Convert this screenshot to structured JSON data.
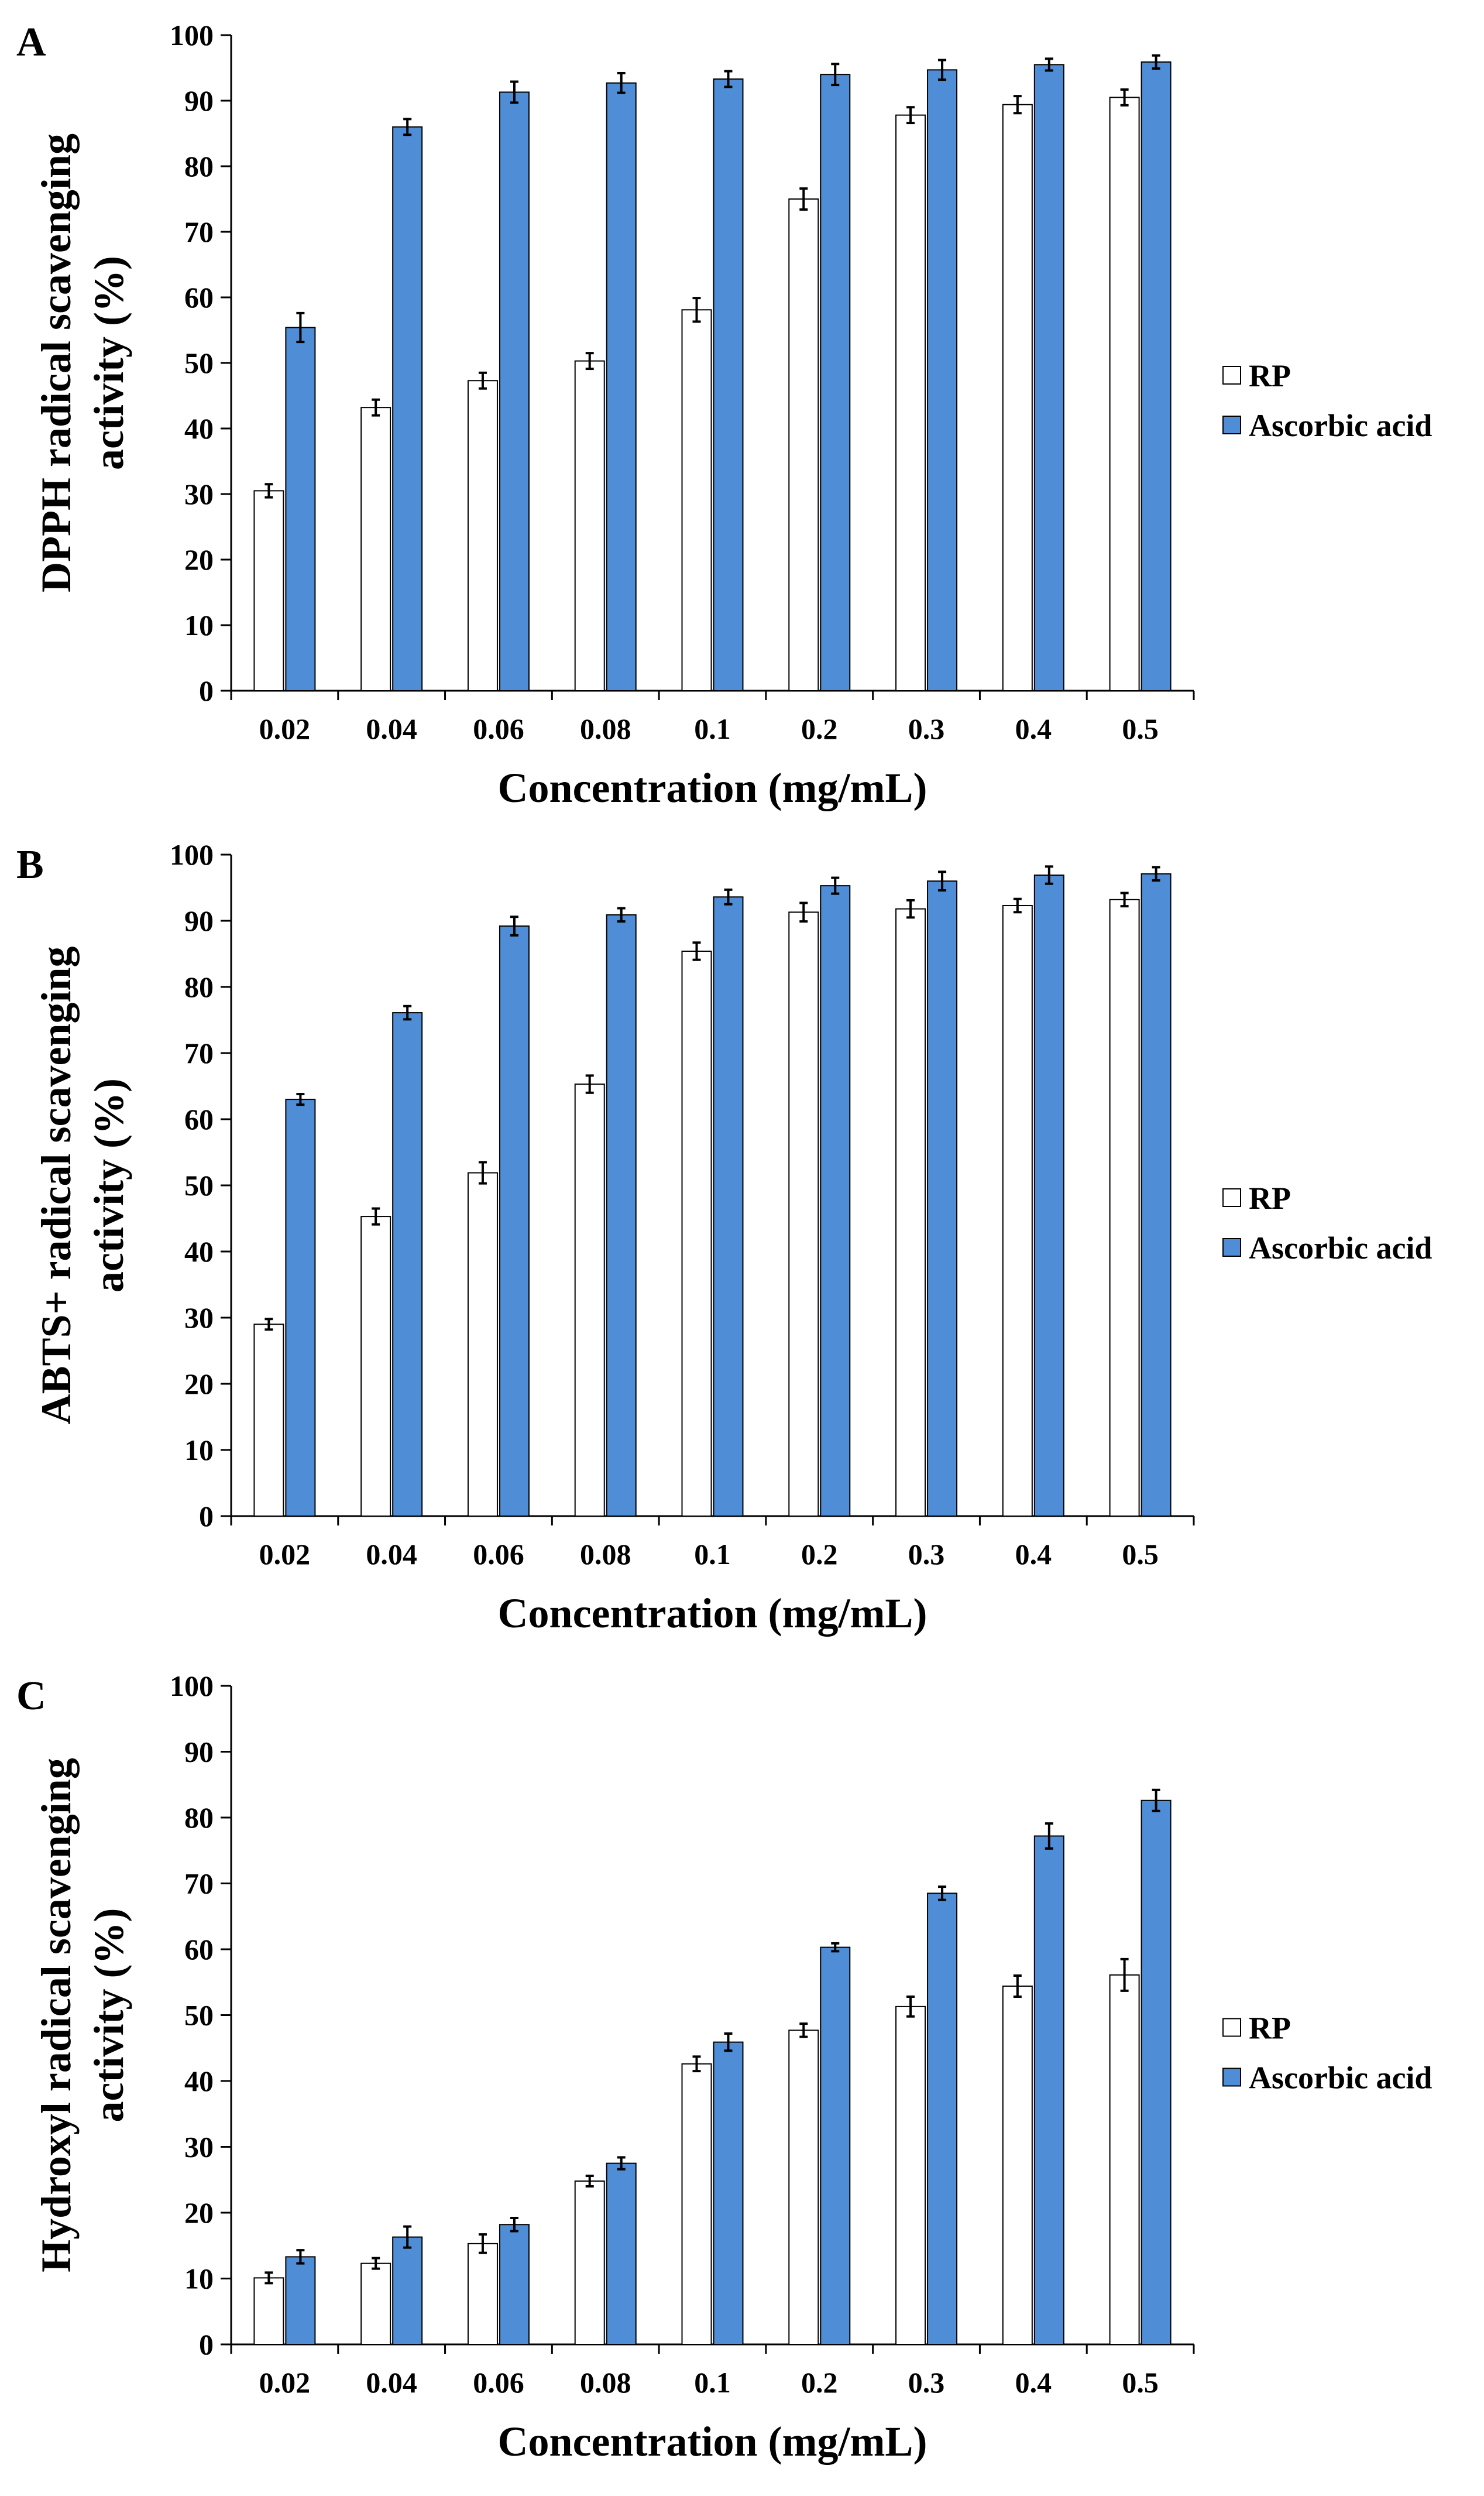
{
  "colors": {
    "rp": "#ffffff",
    "ascorbic": "#4f8ed6",
    "stroke": "#000000"
  },
  "chart_data": [
    {
      "panel": "A",
      "type": "bar",
      "xlabel": "Concentration (mg/mL)",
      "ylabel_line1": "DPPH radical scavenging",
      "ylabel_line2": "activity (%)",
      "ylim": [
        0,
        100
      ],
      "yticks": [
        "0",
        "10",
        "20",
        "30",
        "40",
        "50",
        "60",
        "70",
        "80",
        "90",
        "100"
      ],
      "categories": [
        "0.02",
        "0.04",
        "0.06",
        "0.08",
        "0.1",
        "0.2",
        "0.3",
        "0.4",
        "0.5"
      ],
      "series": [
        {
          "name": "RP",
          "values": [
            30.5,
            43.2,
            47.3,
            50.3,
            58.1,
            75.0,
            87.8,
            89.4,
            90.5
          ],
          "errors": [
            1.0,
            1.2,
            1.2,
            1.2,
            1.8,
            1.6,
            1.2,
            1.3,
            1.2
          ]
        },
        {
          "name": "Ascorbic acid",
          "values": [
            55.4,
            86.0,
            91.3,
            92.7,
            93.3,
            94.0,
            94.7,
            95.5,
            95.9
          ],
          "errors": [
            2.2,
            1.2,
            1.6,
            1.5,
            1.2,
            1.6,
            1.5,
            0.9,
            1.0
          ]
        }
      ]
    },
    {
      "panel": "B",
      "type": "bar",
      "xlabel": "Concentration (mg/mL)",
      "ylabel_line1": "ABTS+ radical scavenging",
      "ylabel_line2": "activity (%)",
      "ylim": [
        0,
        100
      ],
      "yticks": [
        "0",
        "10",
        "20",
        "30",
        "40",
        "50",
        "60",
        "70",
        "80",
        "90",
        "100"
      ],
      "categories": [
        "0.02",
        "0.04",
        "0.06",
        "0.08",
        "0.1",
        "0.2",
        "0.3",
        "0.4",
        "0.5"
      ],
      "series": [
        {
          "name": "RP",
          "values": [
            29.0,
            45.3,
            51.9,
            65.3,
            85.4,
            91.3,
            91.8,
            92.3,
            93.2
          ],
          "errors": [
            0.8,
            1.2,
            1.6,
            1.3,
            1.3,
            1.4,
            1.3,
            1.0,
            1.0
          ]
        },
        {
          "name": "Ascorbic acid",
          "values": [
            63.0,
            76.1,
            89.2,
            90.9,
            93.6,
            95.3,
            96.0,
            96.9,
            97.1
          ],
          "errors": [
            0.8,
            1.0,
            1.4,
            1.0,
            1.1,
            1.2,
            1.4,
            1.3,
            1.0
          ]
        }
      ]
    },
    {
      "panel": "C",
      "type": "bar",
      "xlabel": "Concentration (mg/mL)",
      "ylabel_line1": "Hydroxyl radical scavenging",
      "ylabel_line2": "activity (%)",
      "ylim": [
        0,
        100
      ],
      "yticks": [
        "0",
        "10",
        "20",
        "30",
        "40",
        "50",
        "60",
        "70",
        "80",
        "90",
        "100"
      ],
      "categories": [
        "0.02",
        "0.04",
        "0.06",
        "0.08",
        "0.1",
        "0.2",
        "0.3",
        "0.4",
        "0.5"
      ],
      "series": [
        {
          "name": "RP",
          "values": [
            10.1,
            12.3,
            15.3,
            24.8,
            42.6,
            47.7,
            51.3,
            54.4,
            56.1
          ],
          "errors": [
            0.8,
            0.8,
            1.4,
            0.8,
            1.1,
            1.0,
            1.5,
            1.6,
            2.4
          ]
        },
        {
          "name": "Ascorbic acid",
          "values": [
            13.3,
            16.3,
            18.2,
            27.5,
            45.9,
            60.3,
            68.5,
            77.2,
            82.6
          ],
          "errors": [
            1.0,
            1.6,
            1.0,
            0.9,
            1.3,
            0.6,
            1.0,
            1.9,
            1.6
          ]
        }
      ]
    }
  ]
}
